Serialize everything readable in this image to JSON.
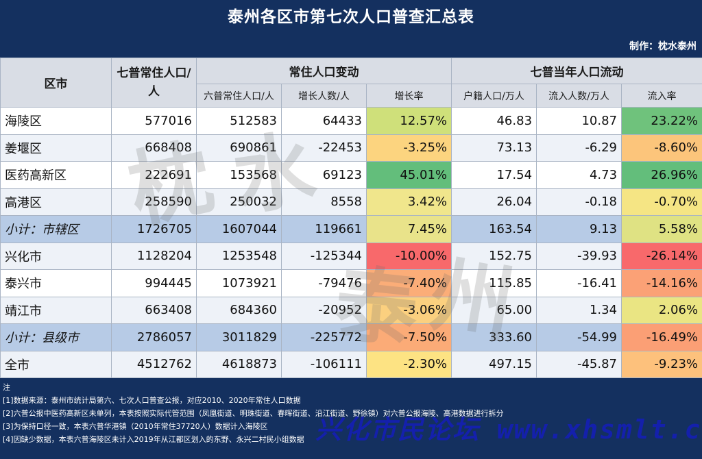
{
  "title": "泰州各区市第七次人口普查汇总表",
  "credit": "制作：枕水泰州",
  "header": {
    "col_region": "区市",
    "col_pop": "七普常住人口/人",
    "group_change": "常住人口变动",
    "group_flow": "七普当年人口流动",
    "col_pop6": "六普常住人口/人",
    "col_growth": "增长人数/人",
    "col_growth_rate": "增长率",
    "col_registered": "户籍人口/万人",
    "col_inflow": "流入人数/万人",
    "col_inflow_rate": "流入率"
  },
  "rows": [
    {
      "name": "海陵区",
      "pop7": "577016",
      "pop6": "512583",
      "growth": "64433",
      "growth_rate": "12.57%",
      "registered": "46.83",
      "inflow": "10.87",
      "inflow_rate": "23.22%"
    },
    {
      "name": "姜堰区",
      "pop7": "668408",
      "pop6": "690861",
      "growth": "-22453",
      "growth_rate": "-3.25%",
      "registered": "73.13",
      "inflow": "-6.29",
      "inflow_rate": "-8.60%"
    },
    {
      "name": "医药高新区",
      "pop7": "222691",
      "pop6": "153568",
      "growth": "69123",
      "growth_rate": "45.01%",
      "registered": "17.54",
      "inflow": "4.73",
      "inflow_rate": "26.96%"
    },
    {
      "name": "高港区",
      "pop7": "258590",
      "pop6": "250032",
      "growth": "8558",
      "growth_rate": "3.42%",
      "registered": "26.04",
      "inflow": "-0.18",
      "inflow_rate": "-0.70%"
    },
    {
      "name": "小计：市辖区",
      "pop7": "1726705",
      "pop6": "1607044",
      "growth": "119661",
      "growth_rate": "7.45%",
      "registered": "163.54",
      "inflow": "9.13",
      "inflow_rate": "5.58%"
    },
    {
      "name": "兴化市",
      "pop7": "1128204",
      "pop6": "1253548",
      "growth": "-125344",
      "growth_rate": "-10.00%",
      "registered": "152.75",
      "inflow": "-39.93",
      "inflow_rate": "-26.14%"
    },
    {
      "name": "泰兴市",
      "pop7": "994445",
      "pop6": "1073921",
      "growth": "-79476",
      "growth_rate": "-7.40%",
      "registered": "115.85",
      "inflow": "-16.41",
      "inflow_rate": "-14.16%"
    },
    {
      "name": "靖江市",
      "pop7": "663408",
      "pop6": "684360",
      "growth": "-20952",
      "growth_rate": "-3.06%",
      "registered": "65.00",
      "inflow": "1.34",
      "inflow_rate": "2.06%"
    },
    {
      "name": "小计：县级市",
      "pop7": "2786057",
      "pop6": "3011829",
      "growth": "-225772",
      "growth_rate": "-7.50%",
      "registered": "333.60",
      "inflow": "-54.99",
      "inflow_rate": "-16.49%"
    },
    {
      "name": "全市",
      "pop7": "4512762",
      "pop6": "4618873",
      "growth": "-106111",
      "growth_rate": "-2.30%",
      "registered": "497.15",
      "inflow": "-45.87",
      "inflow_rate": "-9.23%"
    }
  ],
  "heat_colors": {
    "growth_rate": [
      "#cfe07a",
      "#fcd47f",
      "#63be7b",
      "#f0e68c",
      "#e9e38a",
      "#f8696b",
      "#fbad78",
      "#fbd07f",
      "#fbab77",
      "#fde383"
    ],
    "inflow_rate": [
      "#6fc27c",
      "#fcc57b",
      "#63be7b",
      "#f5e584",
      "#dfe283",
      "#f8696b",
      "#fba176",
      "#eae583",
      "#fb9f75",
      "#fdc17c"
    ]
  },
  "notes": [
    "注",
    "[1]数据来源：泰州市统计局第六、七次人口普查公报，对应2010、2020年常住人口数据",
    "[2]六普公报中医药高新区未单列，本表按照实际代管范围（凤凰街道、明珠街道、春晖街道、沿江街道、野徐镇）对六普公报海陵、高港数据进行拆分",
    "[3]为保持口径一致，本表六普华港镇（2010年常住37720人）数据计入海陵区",
    "[4]因缺少数据，本表六普海陵区未计入2019年从江都区划入的东野、永兴二村民小组数据"
  ],
  "watermark": {
    "logo": "枕水泰州",
    "forum": "兴化市民论坛 www.xhsmlt.com"
  }
}
